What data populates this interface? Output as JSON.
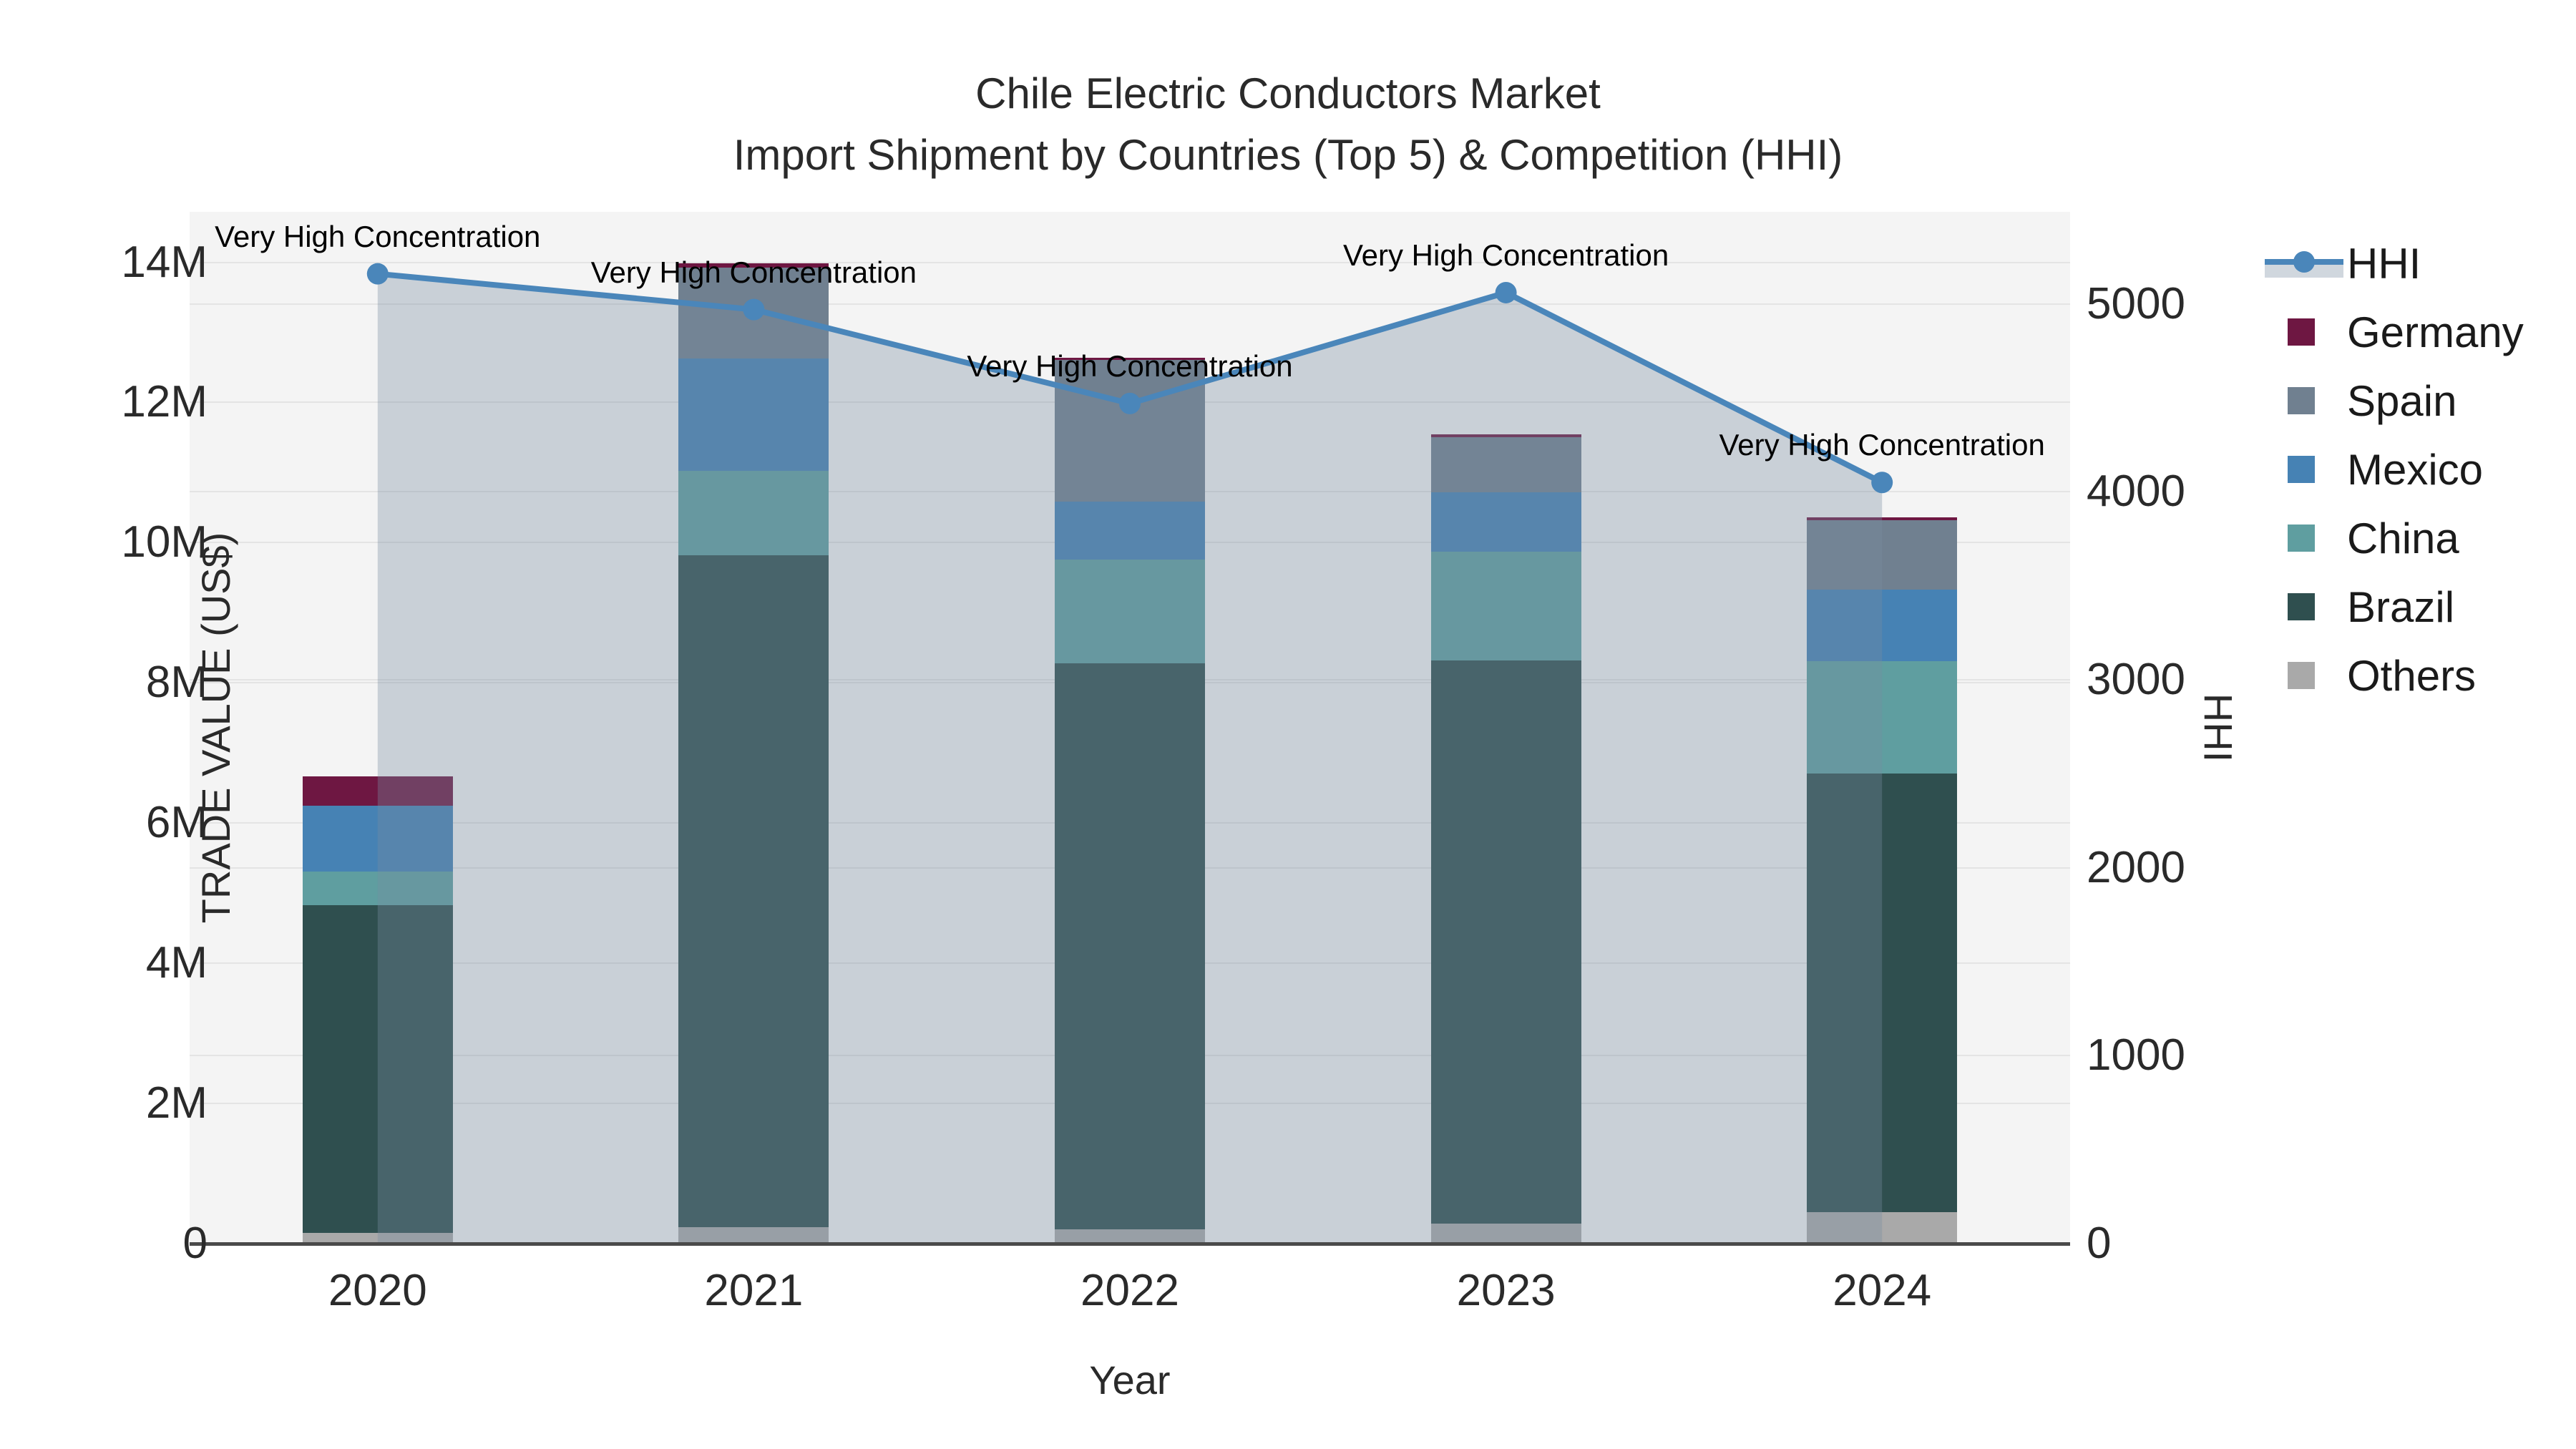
{
  "title": {
    "line1": "Chile Electric Conductors Market",
    "line2": "Import Shipment by Countries (Top 5) & Competition (HHI)"
  },
  "axes": {
    "left": {
      "title": "TRADE VALUE (US$)",
      "ticks": [
        {
          "value": 0,
          "label": "0"
        },
        {
          "value": 2000000,
          "label": "2M"
        },
        {
          "value": 4000000,
          "label": "4M"
        },
        {
          "value": 6000000,
          "label": "6M"
        },
        {
          "value": 8000000,
          "label": "8M"
        },
        {
          "value": 10000000,
          "label": "10M"
        },
        {
          "value": 12000000,
          "label": "12M"
        },
        {
          "value": 14000000,
          "label": "14M"
        }
      ],
      "range": [
        0,
        14720000
      ]
    },
    "right": {
      "title": "HHI",
      "ticks": [
        {
          "value": 0,
          "label": "0"
        },
        {
          "value": 1000,
          "label": "1000"
        },
        {
          "value": 2000,
          "label": "2000"
        },
        {
          "value": 3000,
          "label": "3000"
        },
        {
          "value": 4000,
          "label": "4000"
        },
        {
          "value": 5000,
          "label": "5000"
        }
      ],
      "range": [
        0,
        5490
      ]
    },
    "x": {
      "title": "Year",
      "categories": [
        "2020",
        "2021",
        "2022",
        "2023",
        "2024"
      ]
    }
  },
  "chart_data": {
    "type": "bar",
    "subtype": "stacked-bar-with-line",
    "title": "Chile Electric Conductors Market — Import Shipment by Countries (Top 5) & Competition (HHI)",
    "xlabel": "Year",
    "ylabel_left": "TRADE VALUE (US$)",
    "ylabel_right": "HHI",
    "categories": [
      "2020",
      "2021",
      "2022",
      "2023",
      "2024"
    ],
    "ylim_left": [
      0,
      14720000
    ],
    "ylim_right": [
      0,
      5490
    ],
    "grid": true,
    "legend_position": "right",
    "series": [
      {
        "name": "Others",
        "stack_order": 0,
        "values": [
          150000,
          230000,
          200000,
          290000,
          450000
        ]
      },
      {
        "name": "Brazil",
        "stack_order": 1,
        "values": [
          4680000,
          9590000,
          8080000,
          8030000,
          6260000
        ]
      },
      {
        "name": "China",
        "stack_order": 2,
        "values": [
          480000,
          1200000,
          1480000,
          1550000,
          1600000
        ]
      },
      {
        "name": "Mexico",
        "stack_order": 3,
        "values": [
          940000,
          1610000,
          830000,
          850000,
          1020000
        ]
      },
      {
        "name": "Spain",
        "stack_order": 4,
        "values": [
          0,
          1290000,
          2020000,
          780000,
          990000
        ]
      },
      {
        "name": "Germany",
        "stack_order": 5,
        "values": [
          420000,
          70000,
          30000,
          50000,
          40000
        ]
      }
    ],
    "line_series": {
      "name": "HHI",
      "axis": "right",
      "fill": "tozeroy",
      "values": [
        5160,
        4970,
        4470,
        5060,
        4050
      ]
    },
    "annotations": [
      {
        "text": "Very High Concentration",
        "point_index": 0
      },
      {
        "text": "Very High Concentration",
        "point_index": 1
      },
      {
        "text": "Very High Concentration",
        "point_index": 2
      },
      {
        "text": "Very High Concentration",
        "point_index": 3
      },
      {
        "text": "Very High Concentration",
        "point_index": 4
      }
    ]
  },
  "legend": {
    "items": [
      {
        "label": "HHI",
        "type": "line"
      },
      {
        "label": "Germany",
        "type": "square"
      },
      {
        "label": "Spain",
        "type": "square"
      },
      {
        "label": "Mexico",
        "type": "square"
      },
      {
        "label": "China",
        "type": "square"
      },
      {
        "label": "Brazil",
        "type": "square"
      },
      {
        "label": "Others",
        "type": "square"
      }
    ]
  },
  "colors": {
    "germany": "#6E1742",
    "spain": "#708090",
    "mexico": "#4682B4",
    "china": "#5F9EA0",
    "brazil": "#2F4F4F",
    "others": "#A9A9A9",
    "hhi_line": "#4A86BA",
    "hhi_fill": "rgba(120,139,161,0.35)",
    "plot_background": "#F4F4F4",
    "gridline": "#E4E4E4",
    "axis_line": "#4A4A4A"
  }
}
